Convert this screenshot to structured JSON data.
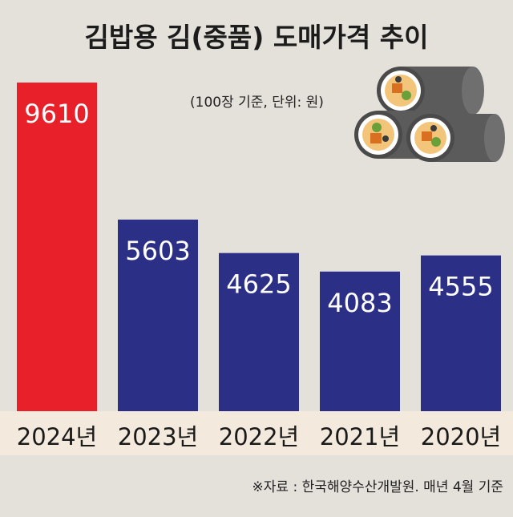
{
  "chart_data": {
    "type": "bar",
    "title": "김밥용 김(중품) 도매가격 추이",
    "unit_note": "(100장 기준, 단위: 원)",
    "source": "※자료 : 한국해양수산개발원. 매년 4월 기준",
    "categories": [
      "2024년",
      "2023년",
      "2022년",
      "2021년",
      "2020년"
    ],
    "values": [
      9610,
      5603,
      4625,
      4083,
      4555
    ],
    "value_labels": [
      "9610",
      "5603",
      "4625",
      "4083",
      "4555"
    ],
    "ylim": [
      0,
      9610
    ],
    "colors": {
      "highlight": "#e8202a",
      "bar": "#2b2f86",
      "label_band": "#f3eadd",
      "background": "#e4e0da"
    },
    "grid": false,
    "legend": "none"
  },
  "illustration": {
    "icon": "gimbap-rolls-icon"
  }
}
